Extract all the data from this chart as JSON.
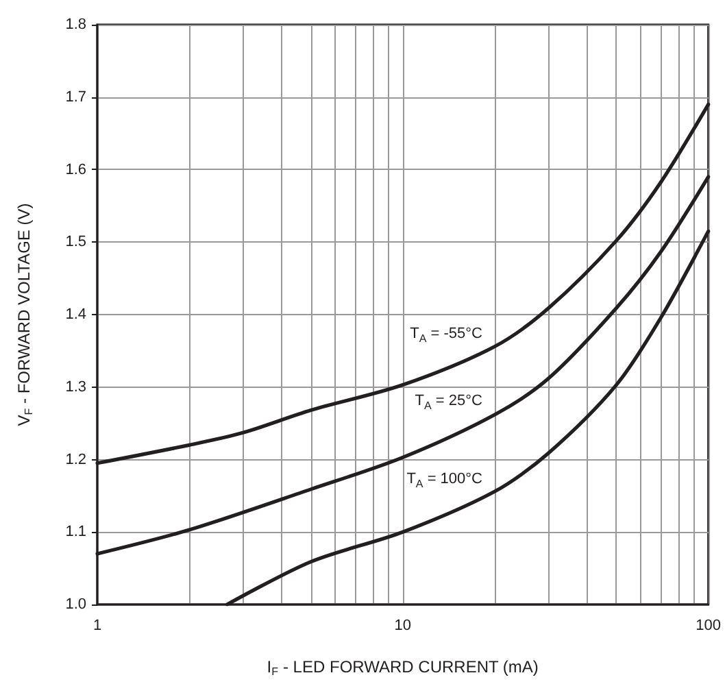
{
  "chart_data": {
    "type": "line",
    "xlabel": "I$_{F}$ - LED FORWARD CURRENT (mA)",
    "ylabel": "V$_{F}$ - FORWARD VOLTAGE (V)",
    "log": "x",
    "xlim": [
      1,
      100
    ],
    "xticks": [
      1,
      {
        "value": 2,
        "label": null
      },
      {
        "value": 3,
        "label": null
      },
      {
        "value": 4,
        "label": null
      },
      {
        "value": 5,
        "label": null
      },
      {
        "value": 6,
        "label": null
      },
      {
        "value": 7,
        "label": null
      },
      {
        "value": 8,
        "label": null
      },
      {
        "value": 9,
        "label": null
      },
      10,
      {
        "value": 20,
        "label": null
      },
      {
        "value": 30,
        "label": null
      },
      {
        "value": 40,
        "label": null
      },
      {
        "value": 50,
        "label": null
      },
      {
        "value": 60,
        "label": null
      },
      {
        "value": 70,
        "label": null
      },
      {
        "value": 80,
        "label": null
      },
      {
        "value": 90,
        "label": null
      },
      100
    ],
    "ylim": [
      1.0,
      1.8
    ],
    "yticks": [
      {
        "value": 1.0,
        "label": "1.0"
      },
      1.1,
      1.2,
      1.3,
      1.4,
      1.5,
      1.6,
      1.7,
      1.8
    ],
    "grid": true,
    "marker": "none",
    "line_style": "solid",
    "series": [
      {
        "name": "T$_{A}$ = -55°C",
        "color": "#231f20",
        "x": [
          1,
          2,
          3,
          5,
          10,
          20,
          30,
          50,
          70,
          100
        ],
        "values": [
          1.195,
          1.22,
          1.237,
          1.268,
          1.303,
          1.356,
          1.409,
          1.502,
          1.583,
          1.69
        ]
      },
      {
        "name": "T$_{A}$ = 25°C",
        "color": "#231f20",
        "x": [
          1,
          2,
          5,
          10,
          20,
          30,
          50,
          70,
          100
        ],
        "values": [
          1.07,
          1.103,
          1.159,
          1.203,
          1.262,
          1.312,
          1.409,
          1.487,
          1.59
        ]
      },
      {
        "name": "T$_{A}$ = 100°C",
        "color": "#231f20",
        "x": [
          2.66,
          5,
          10,
          20,
          30,
          50,
          70,
          100
        ],
        "values": [
          1.0,
          1.059,
          1.1,
          1.156,
          1.209,
          1.303,
          1.396,
          1.515
        ]
      }
    ]
  }
}
